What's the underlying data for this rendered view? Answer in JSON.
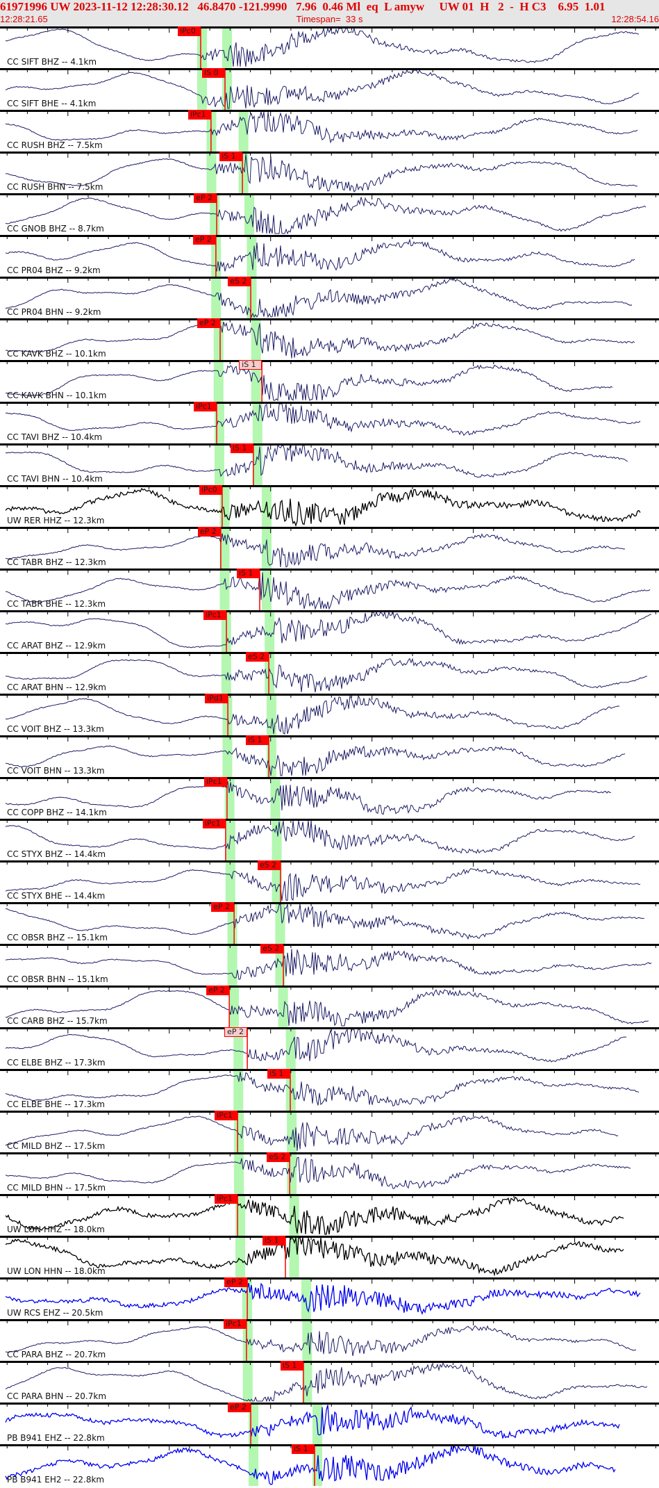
{
  "header": {
    "title": "61971996 UW 2023-11-12 12:28:30.12   46.8470 -121.9990   7.96  0.46 Ml  eq  L amyw     UW 01  H   2  -  H C3    6.95  1.01",
    "start_time": "12:28:21.65",
    "timespan": "Timespan=  33 s",
    "end_time": "12:28:54.16"
  },
  "time_axis": {
    "start_sec": 21.65,
    "end_sec": 54.16,
    "minute": "12:28",
    "minor_tick_s": 1,
    "major_tick_s": 5
  },
  "colors": {
    "header_text": "#e00000",
    "header_bg": "#e6e6e6",
    "pick": "#ff0000",
    "window": "#b3f7b0",
    "trace_default": "#1c1c66",
    "trace_black": "#000000",
    "trace_blue": "#0000ee"
  },
  "traces": [
    {
      "label": "CC SIFT BHZ -- 4.1km",
      "dist": 4.1,
      "color": "navy",
      "pick": {
        "phase": "iPc0",
        "t_sec": 31.55
      }
    },
    {
      "label": "CC SIFT BHE -- 4.1km",
      "dist": 4.1,
      "color": "navy",
      "pick": {
        "phase": "iS 0",
        "t_sec": 32.75
      }
    },
    {
      "label": "CC RUSH BHZ -- 7.5km",
      "dist": 7.5,
      "color": "navy",
      "pick": {
        "phase": "iPc1",
        "t_sec": 32.06
      }
    },
    {
      "label": "CC RUSH BHN -- 7.5km",
      "dist": 7.5,
      "color": "navy",
      "pick": {
        "phase": "iS 1",
        "t_sec": 33.61
      }
    },
    {
      "label": "CC GNOB BHZ -- 8.7km",
      "dist": 8.7,
      "color": "navy",
      "pick": {
        "phase": "eP 2",
        "t_sec": 32.34
      }
    },
    {
      "label": "CC PR04 BHZ -- 9.2km",
      "dist": 9.2,
      "color": "navy",
      "pick": {
        "phase": "eP 2",
        "t_sec": 32.3
      }
    },
    {
      "label": "CC PR04 BHN -- 9.2km",
      "dist": 9.2,
      "color": "navy",
      "pick": {
        "phase": "eS 2",
        "t_sec": 34.02
      }
    },
    {
      "label": "CC KAVK BHZ -- 10.1km",
      "dist": 10.1,
      "color": "navy",
      "pick": {
        "phase": "eP 2",
        "t_sec": 32.51
      }
    },
    {
      "label": "CC KAVK BHN -- 10.1km",
      "dist": 10.1,
      "color": "navy",
      "pick": {
        "phase": "iS 1",
        "t_sec": 34.57,
        "weak": true
      }
    },
    {
      "label": "CC TAVI BHZ -- 10.4km",
      "dist": 10.4,
      "color": "navy",
      "pick": {
        "phase": "iPc1",
        "t_sec": 32.34
      }
    },
    {
      "label": "CC TAVI BHN -- 10.4km",
      "dist": 10.4,
      "color": "navy",
      "pick": {
        "phase": "iS 1",
        "t_sec": 34.15
      }
    },
    {
      "label": "UW RER HHZ -- 12.3km",
      "dist": 12.3,
      "color": "black",
      "pick": {
        "phase": "iPc0",
        "t_sec": 32.61
      }
    },
    {
      "label": "CC TABR BHZ -- 12.3km",
      "dist": 12.3,
      "color": "navy",
      "pick": {
        "phase": "eP 2",
        "t_sec": 32.54
      }
    },
    {
      "label": "CC TABR BHE -- 12.3km",
      "dist": 12.3,
      "color": "navy",
      "pick": {
        "phase": "iS 1",
        "t_sec": 34.46
      }
    },
    {
      "label": "CC ARAT BHZ -- 12.9km",
      "dist": 12.9,
      "color": "navy",
      "pick": {
        "phase": "iPc1",
        "t_sec": 32.82
      }
    },
    {
      "label": "CC ARAT BHN -- 12.9km",
      "dist": 12.9,
      "color": "navy",
      "pick": {
        "phase": "eS 2",
        "t_sec": 34.91
      }
    },
    {
      "label": "CC VOIT BHZ -- 13.3km",
      "dist": 13.3,
      "color": "navy",
      "pick": {
        "phase": "iPd1",
        "t_sec": 32.89
      }
    },
    {
      "label": "CC VOIT BHN -- 13.3km",
      "dist": 13.3,
      "color": "navy",
      "pick": {
        "phase": "iS 1",
        "t_sec": 34.91
      }
    },
    {
      "label": "CC COPP BHZ -- 14.1km",
      "dist": 14.1,
      "color": "navy",
      "pick": {
        "phase": "iPc1",
        "t_sec": 32.85
      }
    },
    {
      "label": "CC STYX BHZ -- 14.4km",
      "dist": 14.4,
      "color": "navy",
      "pick": {
        "phase": "iPc1",
        "t_sec": 32.78
      }
    },
    {
      "label": "CC STYX BHE -- 14.4km",
      "dist": 14.4,
      "color": "navy",
      "pick": {
        "phase": "eS 2",
        "t_sec": 35.49
      }
    },
    {
      "label": "CC OBSR BHZ -- 15.1km",
      "dist": 15.1,
      "color": "navy",
      "pick": {
        "phase": "eP 2",
        "t_sec": 33.2
      }
    },
    {
      "label": "CC OBSR BHN -- 15.1km",
      "dist": 15.1,
      "color": "navy",
      "pick": {
        "phase": "eS 2",
        "t_sec": 35.63
      }
    },
    {
      "label": "CC CARB BHZ -- 15.7km",
      "dist": 15.7,
      "color": "navy",
      "pick": {
        "phase": "eP 2",
        "t_sec": 32.96
      }
    },
    {
      "label": "CC ELBE BHZ -- 17.3km",
      "dist": 17.3,
      "color": "navy",
      "pick": {
        "phase": "eP 2",
        "t_sec": 33.85,
        "weak": true
      }
    },
    {
      "label": "CC ELBE BHE -- 17.3km",
      "dist": 17.3,
      "color": "navy",
      "pick": {
        "phase": "iS 1",
        "t_sec": 35.97
      }
    },
    {
      "label": "CC MILD BHZ -- 17.5km",
      "dist": 17.5,
      "color": "navy",
      "pick": {
        "phase": "iPc1",
        "t_sec": 33.37
      }
    },
    {
      "label": "CC MILD BHN -- 17.5km",
      "dist": 17.5,
      "color": "navy",
      "pick": {
        "phase": "eS 2",
        "t_sec": 35.94
      }
    },
    {
      "label": "UW LON HHZ -- 18.0km",
      "dist": 18.0,
      "color": "black",
      "pick": {
        "phase": "iPc1",
        "t_sec": 33.37
      }
    },
    {
      "label": "UW LON HHN -- 18.0km",
      "dist": 18.0,
      "color": "black",
      "pick": {
        "phase": "iS 1",
        "t_sec": 35.73
      }
    },
    {
      "label": "UW RCS EHZ -- 20.5km",
      "dist": 20.5,
      "color": "blue",
      "pick": {
        "phase": "eP 2",
        "t_sec": 33.85
      }
    },
    {
      "label": "CC PARA BHZ -- 20.7km",
      "dist": 20.7,
      "color": "navy",
      "pick": {
        "phase": "iPc1",
        "t_sec": 33.81
      }
    },
    {
      "label": "CC PARA BHN -- 20.7km",
      "dist": 20.7,
      "color": "navy",
      "pick": {
        "phase": "iS 1",
        "t_sec": 36.62
      }
    },
    {
      "label": "PB B941 EHZ -- 22.8km",
      "dist": 22.8,
      "color": "blue",
      "pick": {
        "phase": "eP 2",
        "t_sec": 34.02
      }
    },
    {
      "label": "PB B941 EH2 -- 22.8km",
      "dist": 22.8,
      "color": "blue",
      "pick": {
        "phase": "iS 1",
        "t_sec": 37.17
      }
    }
  ]
}
